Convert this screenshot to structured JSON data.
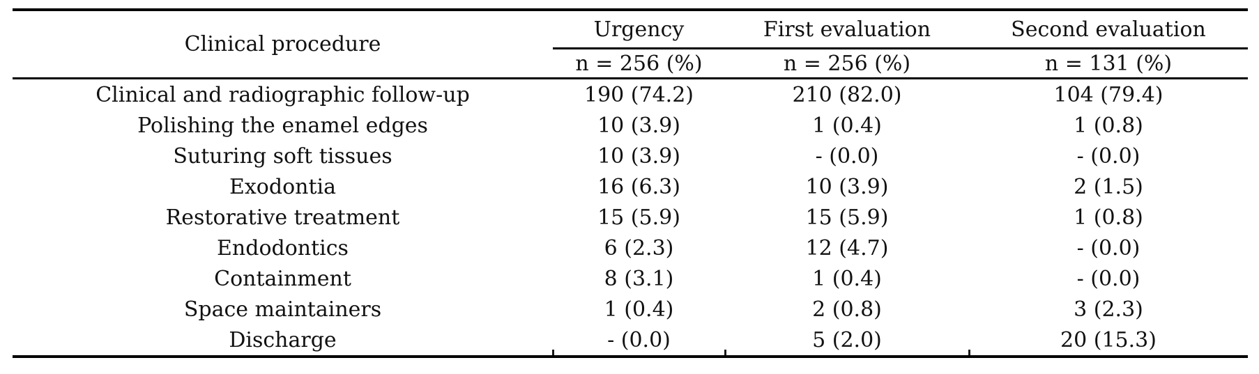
{
  "colors": {
    "background": "#ffffff",
    "text": "#111111",
    "rule": "#000000"
  },
  "table": {
    "procedure_header": "Clinical procedure",
    "column_groups": [
      {
        "label": "Urgency",
        "subheader": "n = 256 (%)"
      },
      {
        "label": "First evaluation",
        "subheader": "n = 256 (%)"
      },
      {
        "label": "Second evaluation",
        "subheader": "n = 131 (%)"
      }
    ],
    "rows": [
      {
        "procedure": "Clinical and radiographic follow-up",
        "urgency": "190 (74.2)",
        "first_evaluation": "210 (82.0)",
        "second_evaluation": "104 (79.4)"
      },
      {
        "procedure": "Polishing the enamel edges",
        "urgency": "10 (3.9)",
        "first_evaluation": "1 (0.4)",
        "second_evaluation": "1 (0.8)"
      },
      {
        "procedure": "Suturing soft tissues",
        "urgency": "10 (3.9)",
        "first_evaluation": "- (0.0)",
        "second_evaluation": "- (0.0)"
      },
      {
        "procedure": "Exodontia",
        "urgency": "16 (6.3)",
        "first_evaluation": "10 (3.9)",
        "second_evaluation": "2 (1.5)"
      },
      {
        "procedure": "Restorative treatment",
        "urgency": "15 (5.9)",
        "first_evaluation": "15 (5.9)",
        "second_evaluation": "1 (0.8)"
      },
      {
        "procedure": "Endodontics",
        "urgency": "6 (2.3)",
        "first_evaluation": "12 (4.7)",
        "second_evaluation": "- (0.0)"
      },
      {
        "procedure": "Containment",
        "urgency": "8 (3.1)",
        "first_evaluation": "1 (0.4)",
        "second_evaluation": "- (0.0)"
      },
      {
        "procedure": "Space maintainers",
        "urgency": "1 (0.4)",
        "first_evaluation": "2 (0.8)",
        "second_evaluation": "3 (2.3)"
      },
      {
        "procedure": "Discharge",
        "urgency": "- (0.0)",
        "first_evaluation": "5 (2.0)",
        "second_evaluation": "20 (15.3)"
      }
    ]
  }
}
